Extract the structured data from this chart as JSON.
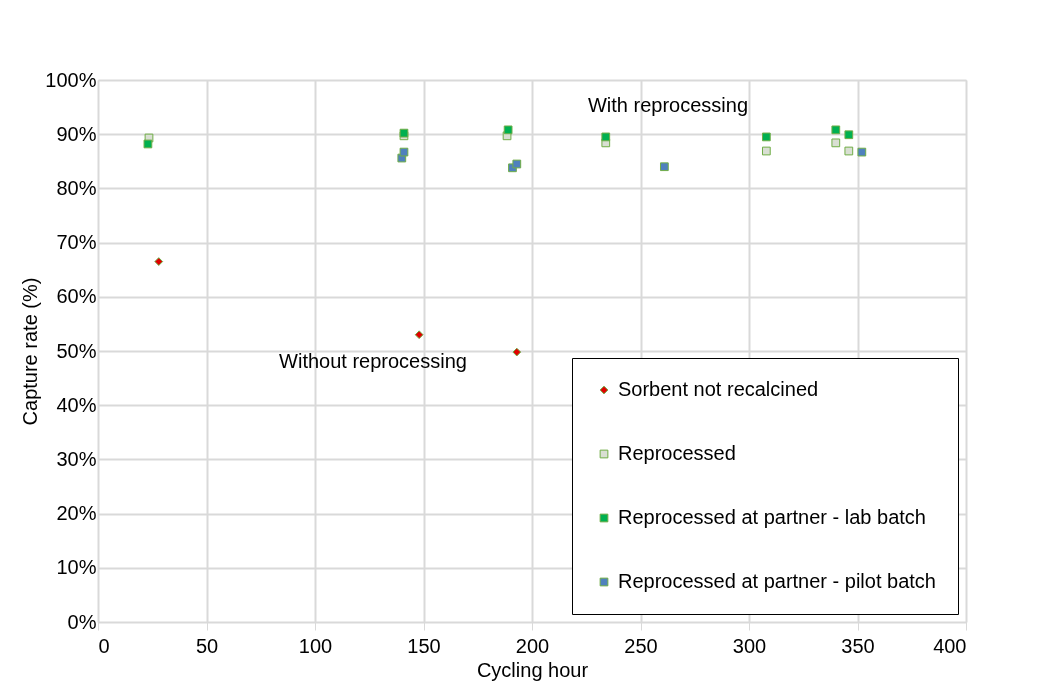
{
  "chart_data": {
    "type": "scatter",
    "xlabel": "Cycling hour",
    "ylabel": "Capture rate (%)",
    "xlim": [
      0,
      400
    ],
    "xticks": [
      0,
      50,
      100,
      150,
      200,
      250,
      300,
      350,
      400
    ],
    "ylim": [
      0,
      100
    ],
    "yticks": [
      {
        "value": 0,
        "label": "0%"
      },
      {
        "value": 10,
        "label": "10%"
      },
      {
        "value": 20,
        "label": "20%"
      },
      {
        "value": 30,
        "label": "30%"
      },
      {
        "value": 40,
        "label": "40%"
      },
      {
        "value": 50,
        "label": "50%"
      },
      {
        "value": 60,
        "label": "60%"
      },
      {
        "value": 70,
        "label": "70%"
      },
      {
        "value": 80,
        "label": "80%"
      },
      {
        "value": 90,
        "label": "90%"
      },
      {
        "value": 100,
        "label": "100%"
      }
    ],
    "grid": true,
    "legend": "bottom right",
    "series": [
      {
        "name": "Sorbent not recalcined",
        "color": "#e00000",
        "marker": "diamond",
        "x": [
          28,
          148,
          193
        ],
        "values": [
          66.5,
          53,
          49.8
        ]
      },
      {
        "name": "Reprocessed",
        "color": "#d9dfd3",
        "marker": "square",
        "x": [
          23.5,
          141,
          188.5,
          234,
          308,
          340,
          346
        ],
        "values": [
          89.3,
          89.7,
          89.7,
          88.4,
          86.9,
          88.4,
          86.9
        ]
      },
      {
        "name": "Reprocessed at partner - lab batch",
        "color": "#00b050",
        "marker": "square",
        "x": [
          23,
          141,
          189,
          234,
          308,
          340,
          346
        ],
        "values": [
          88.2,
          90.2,
          90.8,
          89.5,
          89.5,
          90.8,
          89.9
        ]
      },
      {
        "name": "Reprocessed at partner - pilot batch",
        "color": "#4f81bd",
        "marker": "square",
        "x": [
          140,
          141,
          191,
          193,
          261,
          352
        ],
        "values": [
          85.6,
          86.7,
          83.8,
          84.5,
          84,
          86.7
        ]
      }
    ],
    "annotations": [
      "With reprocessing",
      "Without reprocessing"
    ]
  }
}
